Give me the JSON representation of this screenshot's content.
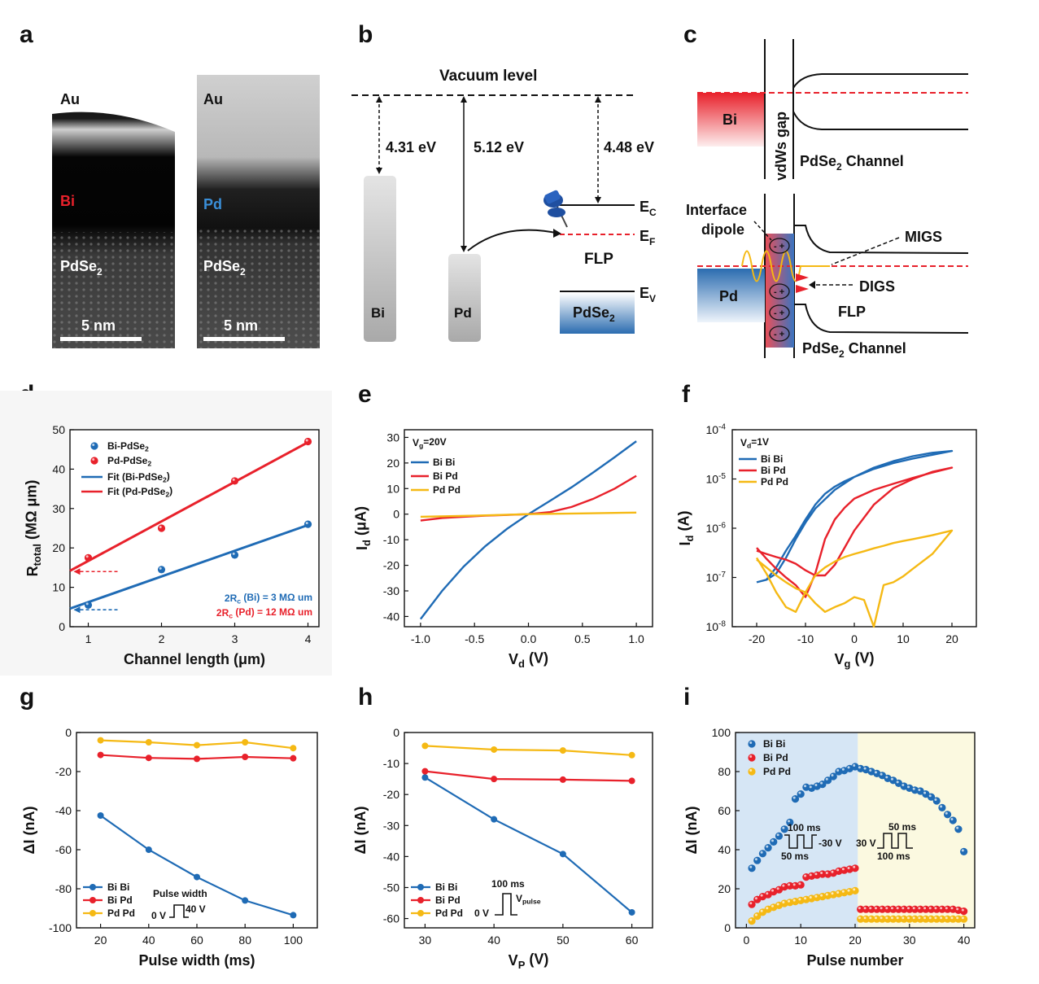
{
  "colors": {
    "bi": "#1f6bb5",
    "pd_red": "#e8212b",
    "pdpd": "#f5b914",
    "shade_blue": "#d6e6f5",
    "shade_yellow": "#fbf9e0"
  },
  "panel_letters": {
    "a": "a",
    "b": "b",
    "c": "c",
    "d": "d",
    "e": "e",
    "f": "f",
    "g": "g",
    "h": "h",
    "i": "i"
  },
  "panel_a": {
    "left": {
      "top": "Au",
      "metal": "Bi",
      "bottom": "PdSe",
      "sub": "2",
      "scale": "5 nm"
    },
    "right": {
      "top": "Au",
      "metal": "Pd",
      "bottom": "PdSe",
      "sub": "2",
      "scale": "5 nm"
    }
  },
  "panel_b": {
    "vacuum": "Vacuum level",
    "wf_bi": "4.31 eV",
    "wf_pd": "5.12 eV",
    "chi": "4.48 eV",
    "bi": "Bi",
    "pd": "Pd",
    "pdse": "PdSe",
    "pdse_sub": "2",
    "ec": "E",
    "ec_sub": "C",
    "ef": "E",
    "ef_sub": "F",
    "ev": "E",
    "ev_sub": "V",
    "flp": "FLP"
  },
  "panel_c": {
    "bi": "Bi",
    "gap": "vdWs gap",
    "channel": "PdSe",
    "channel_sub": "2",
    "channel_rest": " Channel",
    "interface1": "Interface",
    "interface2": "dipole",
    "migs": "MIGS",
    "digs": "DIGS",
    "flp": "FLP",
    "pd": "Pd"
  },
  "chart_data": [
    {
      "panel": "d",
      "type": "scatter",
      "xlabel": "Channel length (μm)",
      "ylabel": "R",
      "ylabel_sub": "total",
      "ylabel_rest": " (MΩ μm)",
      "xlim": [
        0.75,
        4.15
      ],
      "ylim": [
        0,
        50
      ],
      "xticks": [
        "1",
        "2",
        "3",
        "4"
      ],
      "yticks": [
        "0",
        "10",
        "20",
        "30",
        "40",
        "50"
      ],
      "series": [
        {
          "name": "Bi-PdSe",
          "name_sub": "2",
          "x": [
            1,
            2,
            3,
            4
          ],
          "y": [
            5.5,
            14.5,
            18.2,
            26
          ]
        },
        {
          "name": "Pd-PdSe",
          "name_sub": "2",
          "x": [
            1,
            2,
            3,
            4
          ],
          "y": [
            17.5,
            25,
            37,
            47
          ]
        }
      ],
      "fits": [
        {
          "name": "Fit (Bi-PdSe",
          "name_sub": "2",
          "name_end": ")",
          "x": [
            0.75,
            4
          ],
          "y": [
            4.6,
            25.8
          ]
        },
        {
          "name": "Fit (Pd-PdSe",
          "name_sub": "2",
          "name_end": ")",
          "x": [
            0.75,
            4
          ],
          "y": [
            14.2,
            46.8
          ]
        }
      ],
      "annotations": [
        {
          "text": "2R",
          "sub": "c",
          "rest": " (Bi) = 3 MΩ um"
        },
        {
          "text": "2R",
          "sub": "c",
          "rest": " (Pd) = 12 MΩ um"
        }
      ]
    },
    {
      "panel": "e",
      "type": "line",
      "title": "V",
      "title_sub": "g",
      "title_rest": "=20V",
      "xlabel": "V",
      "xlabel_sub": "d",
      "xlabel_rest": " (V)",
      "ylabel": "I",
      "ylabel_sub": "d",
      "ylabel_rest": " (μA)",
      "xlim": [
        -1.15,
        1.15
      ],
      "ylim": [
        -44,
        33
      ],
      "xticks": [
        "-1.0",
        "-0.5",
        "0.0",
        "0.5",
        "1.0"
      ],
      "yticks": [
        "-40",
        "-30",
        "-20",
        "-10",
        "0",
        "10",
        "20",
        "30"
      ],
      "series": [
        {
          "name": "Bi Bi",
          "x": [
            -1,
            -0.8,
            -0.6,
            -0.4,
            -0.2,
            0,
            0.2,
            0.4,
            0.6,
            0.8,
            1
          ],
          "y": [
            -41,
            -30,
            -20.5,
            -12.5,
            -5.8,
            0,
            5.2,
            10.5,
            16.3,
            22.3,
            28.5
          ]
        },
        {
          "name": "Bi Pd",
          "x": [
            -1,
            -0.8,
            -0.6,
            -0.4,
            -0.2,
            0,
            0.2,
            0.4,
            0.6,
            0.8,
            1
          ],
          "y": [
            -2.5,
            -1.5,
            -1,
            -0.6,
            -0.3,
            0,
            0.8,
            2.8,
            6,
            10,
            15
          ]
        },
        {
          "name": "Pd Pd",
          "x": [
            -1,
            -0.5,
            0,
            0.5,
            1
          ],
          "y": [
            -1,
            -0.6,
            0,
            0.3,
            0.6
          ]
        }
      ]
    },
    {
      "panel": "f",
      "type": "line",
      "title": "V",
      "title_sub": "d",
      "title_rest": "=1V",
      "xlabel": "V",
      "xlabel_sub": "g",
      "xlabel_rest": " (V)",
      "ylabel": "I",
      "ylabel_sub": "d",
      "ylabel_rest": " (A)",
      "xlim": [
        -25,
        25
      ],
      "ylim_log10": [
        -8,
        -4
      ],
      "xticks": [
        "-20",
        "-10",
        "0",
        "10",
        "20"
      ],
      "yticks": [
        "10",
        "10",
        "10",
        "10",
        "10"
      ],
      "yticks_exp": [
        "-8",
        "-7",
        "-6",
        "-5",
        "-4"
      ],
      "series": [
        {
          "name": "Bi Bi",
          "x": [
            -20,
            -18,
            -16,
            -14,
            -12,
            -10,
            -8,
            -6,
            -4,
            -2,
            0,
            4,
            8,
            12,
            16,
            20,
            16,
            12,
            8,
            4,
            0,
            -4,
            -8,
            -10,
            -12,
            -14,
            -16,
            -18,
            -20
          ],
          "y": [
            8e-08,
            9e-08,
            1.6e-07,
            3.5e-07,
            7e-07,
            1.5e-06,
            3e-06,
            5e-06,
            7e-06,
            9e-06,
            1.1e-05,
            1.6e-05,
            2.1e-05,
            2.6e-05,
            3.1e-05,
            3.7e-05,
            3.4e-05,
            2.9e-05,
            2.3e-05,
            1.7e-05,
            1.1e-05,
            6e-06,
            2.5e-06,
            1.3e-06,
            6e-07,
            2.5e-07,
            1.2e-07,
            9e-08,
            8e-08
          ]
        },
        {
          "name": "Bi Pd",
          "x": [
            -20,
            -18,
            -16,
            -14,
            -12,
            -10,
            -8,
            -6,
            -4,
            -2,
            0,
            4,
            8,
            12,
            16,
            20,
            16,
            12,
            8,
            4,
            0,
            -2,
            -4,
            -6,
            -8,
            -10,
            -12,
            -14,
            -16,
            -18,
            -20
          ],
          "y": [
            4e-07,
            2.4e-07,
            1.5e-07,
            1e-07,
            7e-08,
            4e-08,
            1.2e-07,
            6e-07,
            1.5e-06,
            2.6e-06,
            4e-06,
            6e-06,
            8e-06,
            1.05e-05,
            1.35e-05,
            1.7e-05,
            1.4e-05,
            1e-05,
            6.5e-06,
            3e-06,
            9e-07,
            4e-07,
            1.8e-07,
            1.1e-07,
            1.1e-07,
            1.4e-07,
            1.9e-07,
            2.3e-07,
            2.6e-07,
            3e-07,
            3.5e-07
          ]
        },
        {
          "name": "Pd Pd",
          "x": [
            -20,
            -18,
            -16,
            -14,
            -12,
            -10,
            -8,
            -6,
            -4,
            -2,
            0,
            2,
            4,
            6,
            8,
            10,
            12,
            16,
            20,
            16,
            12,
            10,
            8,
            6,
            4,
            2,
            0,
            -2,
            -4,
            -6,
            -8,
            -10,
            -12,
            -14,
            -16,
            -18,
            -20
          ],
          "y": [
            2.5e-07,
            1.2e-07,
            5e-08,
            2.5e-08,
            2e-08,
            5e-08,
            1.1e-07,
            1.6e-07,
            2.1e-07,
            2.6e-07,
            3e-07,
            3.4e-07,
            3.9e-07,
            4.4e-07,
            5e-07,
            5.5e-07,
            6e-07,
            7.2e-07,
            9e-07,
            3e-07,
            1.5e-07,
            1.05e-07,
            8e-08,
            7e-08,
            1e-08,
            3.5e-08,
            4e-08,
            3e-08,
            2.5e-08,
            2e-08,
            3e-08,
            5e-08,
            6e-08,
            8e-08,
            1.1e-07,
            1.6e-07,
            2.3e-07
          ]
        }
      ]
    },
    {
      "panel": "g",
      "type": "line",
      "xlabel": "Pulse width  (ms)",
      "ylabel": "ΔI (nA)",
      "xlim": [
        10,
        110
      ],
      "ylim": [
        -100,
        0
      ],
      "xticks": [
        "20",
        "40",
        "60",
        "80",
        "100"
      ],
      "yticks": [
        "-100",
        "-80",
        "-60",
        "-40",
        "-20",
        "0"
      ],
      "inset": {
        "top": "Pulse width",
        "low": "0 V",
        "high": "40 V"
      },
      "series": [
        {
          "name": "Bi Bi",
          "x": [
            20,
            40,
            60,
            80,
            100
          ],
          "y": [
            -42.5,
            -60,
            -74,
            -86,
            -93.5
          ]
        },
        {
          "name": "Bi Pd",
          "x": [
            20,
            40,
            60,
            80,
            100
          ],
          "y": [
            -11.5,
            -13,
            -13.5,
            -12.5,
            -13.2
          ]
        },
        {
          "name": "Pd Pd",
          "x": [
            20,
            40,
            60,
            80,
            100
          ],
          "y": [
            -4,
            -5,
            -6.5,
            -5,
            -8
          ]
        }
      ]
    },
    {
      "panel": "h",
      "type": "line",
      "xlabel": "V",
      "xlabel_sub": "P",
      "xlabel_rest": " (V)",
      "ylabel": "ΔI (nA)",
      "xlim": [
        27,
        63
      ],
      "ylim": [
        -63,
        0
      ],
      "xticks": [
        "30",
        "40",
        "50",
        "60"
      ],
      "yticks": [
        "-60",
        "-50",
        "-40",
        "-30",
        "-20",
        "-10",
        "0"
      ],
      "inset": {
        "top": "100 ms",
        "low": "0 V",
        "high": "V",
        "high_sub": "pulse"
      },
      "series": [
        {
          "name": "Bi Bi",
          "x": [
            30,
            40,
            50,
            60
          ],
          "y": [
            -14.5,
            -28,
            -39.2,
            -58
          ]
        },
        {
          "name": "Bi Pd",
          "x": [
            30,
            40,
            50,
            60
          ],
          "y": [
            -12.5,
            -15,
            -15.2,
            -15.6
          ]
        },
        {
          "name": "Pd Pd",
          "x": [
            30,
            40,
            50,
            60
          ],
          "y": [
            -4.3,
            -5.5,
            -5.8,
            -7.3
          ]
        }
      ]
    },
    {
      "panel": "i",
      "type": "scatter",
      "xlabel": "Pulse number",
      "ylabel": "ΔI (nA)",
      "xlim": [
        -2,
        42
      ],
      "ylim": [
        0,
        100
      ],
      "xticks": [
        "0",
        "10",
        "20",
        "30",
        "40"
      ],
      "yticks": [
        "0",
        "20",
        "40",
        "60",
        "80",
        "100"
      ],
      "inset_left": {
        "top": "100 ms",
        "right": "-30 V",
        "bottom": "50 ms"
      },
      "inset_right": {
        "top": "50 ms",
        "left": "30 V",
        "bottom": "100 ms"
      },
      "series": [
        {
          "name": "Bi Bi",
          "x": [
            1,
            2,
            3,
            4,
            5,
            6,
            7,
            8,
            9,
            10,
            11,
            12,
            13,
            14,
            15,
            16,
            17,
            18,
            19,
            20,
            21,
            22,
            23,
            24,
            25,
            26,
            27,
            28,
            29,
            30,
            31,
            32,
            33,
            34,
            35,
            36,
            37,
            38,
            39,
            40
          ],
          "y": [
            30.5,
            34.5,
            38,
            41,
            44,
            47,
            50.5,
            54,
            66,
            68.5,
            72,
            71.5,
            72.5,
            73.5,
            75.5,
            77.5,
            80,
            80.5,
            81.5,
            82.5,
            81.5,
            81,
            80,
            79,
            78,
            76.5,
            75.5,
            74,
            72.5,
            71.5,
            70.5,
            70,
            68.5,
            67,
            65,
            61.5,
            58,
            55,
            50.5,
            39
          ]
        },
        {
          "name": "Bi Pd",
          "x": [
            1,
            2,
            3,
            4,
            5,
            6,
            7,
            8,
            9,
            10,
            11,
            12,
            13,
            14,
            15,
            16,
            17,
            18,
            19,
            20,
            21,
            22,
            23,
            24,
            25,
            26,
            27,
            28,
            29,
            30,
            31,
            32,
            33,
            34,
            35,
            36,
            37,
            38,
            39,
            40
          ],
          "y": [
            12,
            14.5,
            16,
            17,
            18.5,
            19.5,
            21,
            21.5,
            21.5,
            22,
            26,
            26.5,
            27,
            27.5,
            27.5,
            28,
            29,
            29.5,
            30,
            30.5,
            9.5,
            9.5,
            9.5,
            9.5,
            9.5,
            9.5,
            9.5,
            9.5,
            9.5,
            9.5,
            9.5,
            9.5,
            9.5,
            9.5,
            9.5,
            9.5,
            9.5,
            9.5,
            9,
            8.5
          ]
        },
        {
          "name": "Pd Pd",
          "x": [
            1,
            2,
            3,
            4,
            5,
            6,
            7,
            8,
            9,
            10,
            11,
            12,
            13,
            14,
            15,
            16,
            17,
            18,
            19,
            20,
            21,
            22,
            23,
            24,
            25,
            26,
            27,
            28,
            29,
            30,
            31,
            32,
            33,
            34,
            35,
            36,
            37,
            38,
            39,
            40
          ],
          "y": [
            3.5,
            6,
            8,
            9.5,
            10.5,
            11.5,
            12.5,
            13,
            13.5,
            14,
            14.5,
            15,
            15.5,
            16,
            16.5,
            17,
            17.5,
            18,
            18.5,
            19,
            4.5,
            4.5,
            4.5,
            4.5,
            4.5,
            4.5,
            4.5,
            4.5,
            4.5,
            4.5,
            4.5,
            4.5,
            4.5,
            4.5,
            4.5,
            4.5,
            4.5,
            4.5,
            4.5,
            4.5
          ]
        }
      ]
    }
  ]
}
